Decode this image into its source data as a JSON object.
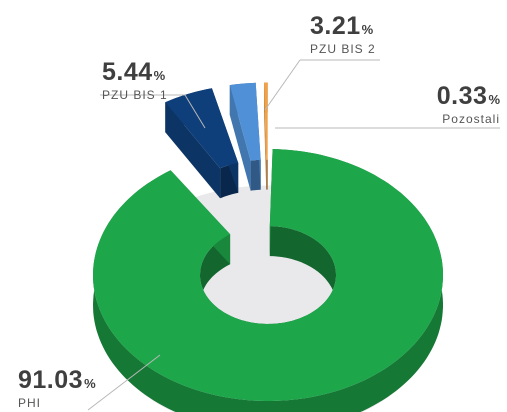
{
  "chart_data": {
    "type": "pie",
    "variant": "3d-donut-exploded",
    "slices": [
      {
        "label": "PHI",
        "value": 91.03,
        "color": "#1ea64a"
      },
      {
        "label": "PZU BIS 1",
        "value": 5.44,
        "color": "#0f3f7a"
      },
      {
        "label": "PZU BIS 2",
        "value": 3.21,
        "color": "#4f90d6"
      },
      {
        "label": "Pozostali",
        "value": 0.33,
        "color": "#f0a24a"
      }
    ]
  },
  "labels": [
    {
      "num": "91.03",
      "sign": "%",
      "name": "PHI"
    },
    {
      "num": "5.44",
      "sign": "%",
      "name": "PZU BIS 1"
    },
    {
      "num": "3.21",
      "sign": "%",
      "name": "PZU BIS 2"
    },
    {
      "num": "0.33",
      "sign": "%",
      "name": "Pozostali"
    }
  ]
}
